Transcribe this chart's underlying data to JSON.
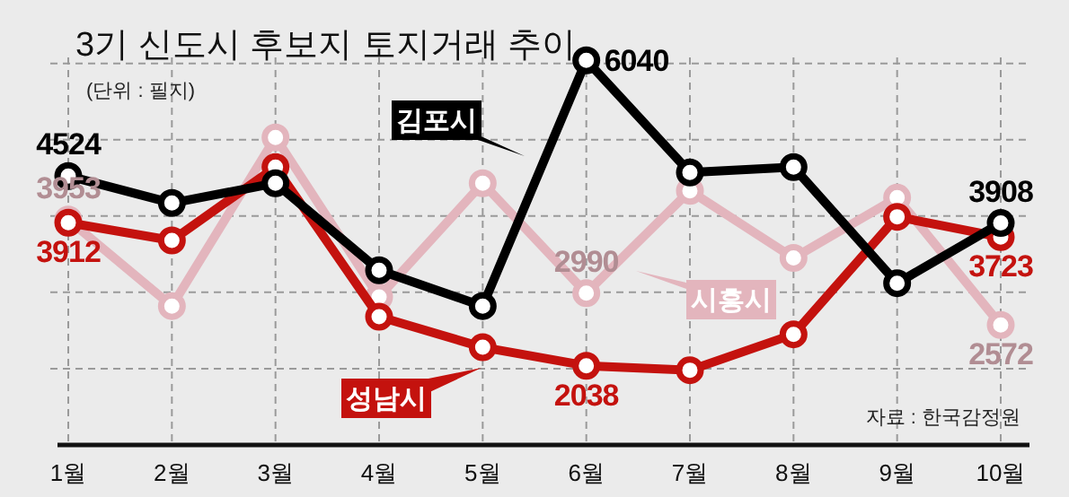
{
  "chart_data": {
    "type": "line",
    "title": "3기 신도시 후보지 토지거래 추이",
    "annotations": [
      "(단위 : 필지)",
      "자료 : 한국감정원"
    ],
    "categories": [
      "1월",
      "2월",
      "3월",
      "4월",
      "5월",
      "6월",
      "7월",
      "8월",
      "9월",
      "10월"
    ],
    "series": [
      {
        "name": "시흥시",
        "color": "#e3b5bd",
        "values": [
          3953,
          2820,
          5030,
          2940,
          4430,
          2990,
          4330,
          3450,
          4240,
          2572
        ],
        "value_labels": [
          "3953",
          null,
          null,
          null,
          null,
          "2990",
          null,
          null,
          null,
          "2572"
        ]
      },
      {
        "name": "성남시",
        "color": "#c4120e",
        "values": [
          3912,
          3680,
          4640,
          2680,
          2280,
          2038,
          1980,
          2450,
          3990,
          3723
        ],
        "value_labels": [
          "3912",
          null,
          null,
          null,
          null,
          "2038",
          null,
          null,
          null,
          "3723"
        ]
      },
      {
        "name": "김포시",
        "color": "#000000",
        "values": [
          4524,
          4170,
          4430,
          3290,
          2820,
          6040,
          4570,
          4640,
          3120,
          3908
        ],
        "value_labels": [
          "4524",
          null,
          null,
          null,
          null,
          "6040",
          null,
          null,
          null,
          "3908"
        ]
      }
    ],
    "yticks": [
      {
        "value": 2000,
        "label": null
      },
      {
        "value": 3000,
        "label": null
      },
      {
        "value": 4000,
        "label": null
      },
      {
        "value": 5000,
        "label": null
      },
      {
        "value": 6000,
        "label": null
      }
    ],
    "tick_labels": "x",
    "grid": true,
    "marker": "circle",
    "line_style": "solid"
  }
}
